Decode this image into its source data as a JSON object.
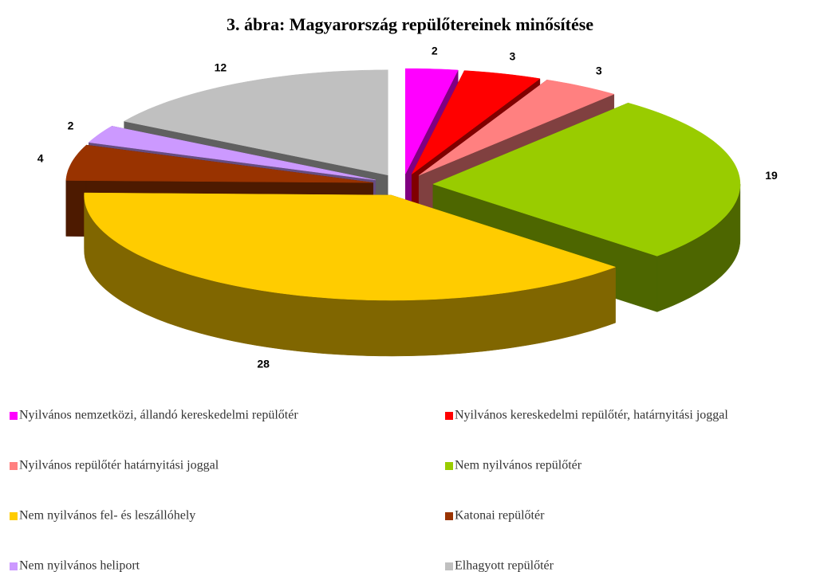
{
  "chart_data": {
    "type": "pie",
    "title": "3. ábra: Magyarország repülőtereinek minősítése",
    "categories": [
      "Nyilvános nemzetközi, állandó kereskedelmi repülőtér",
      "Nyilvános kereskedelmi repülőtér, határnyitási joggal",
      "Nyilvános repülőtér határnyitási joggal",
      "Nem nyilvános repülőtér",
      "Nem nyilvános fel- és leszállóhely",
      "Katonai repülőtér",
      "Nem nyilvános heliport",
      "Elhagyott repülőtér"
    ],
    "values": [
      2,
      3,
      3,
      19,
      28,
      4,
      2,
      12
    ],
    "colors": [
      "#ff00ff",
      "#ff0000",
      "#ff8080",
      "#99cc00",
      "#ffcc00",
      "#993300",
      "#cc99ff",
      "#c0c0c0"
    ],
    "legend": "bottom"
  }
}
